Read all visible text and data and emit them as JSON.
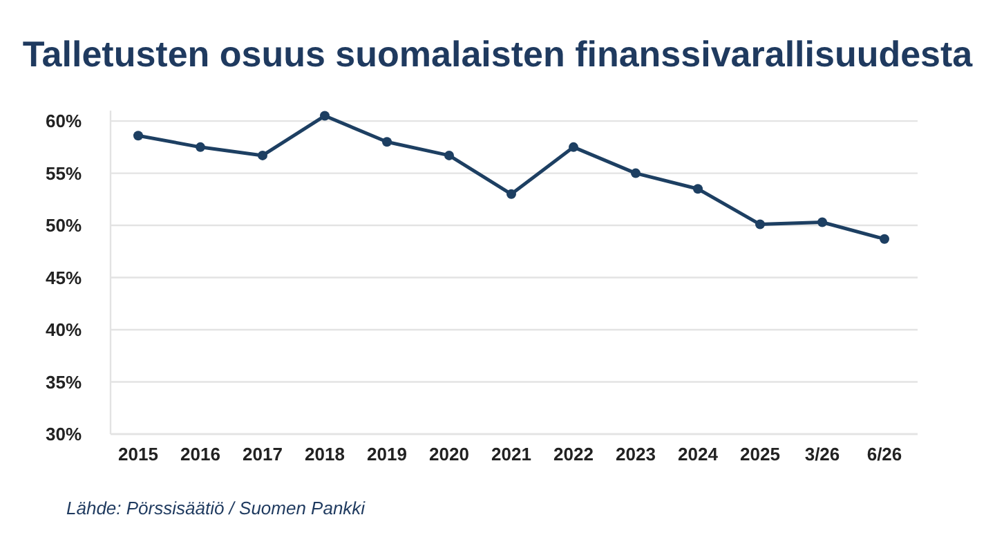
{
  "chart_data": {
    "type": "line",
    "title": "Talletusten osuus suomalaisten finanssivarallisuudesta",
    "categories": [
      "2015",
      "2016",
      "2017",
      "2018",
      "2019",
      "2020",
      "2021",
      "2022",
      "2023",
      "2024",
      "2025",
      "3/26",
      "6/26"
    ],
    "series": [
      {
        "color": "#1d3f62",
        "values": [
          58.6,
          57.5,
          56.7,
          60.5,
          58.0,
          56.7,
          53.0,
          57.5,
          55.0,
          53.5,
          50.1,
          50.3,
          48.7
        ]
      }
    ],
    "ylim": [
      30,
      61
    ],
    "yticks": [
      {
        "value": 30,
        "label": "30%"
      },
      {
        "value": 35,
        "label": "35%"
      },
      {
        "value": 40,
        "label": "40%"
      },
      {
        "value": 45,
        "label": "45%"
      },
      {
        "value": 50,
        "label": "50%"
      },
      {
        "value": 55,
        "label": "55%"
      },
      {
        "value": 60,
        "label": "60%"
      }
    ],
    "grid": "y",
    "marker": "circle",
    "line_style": "solid",
    "annotations": [
      "Lähde: Pörssisäätiö / Suomen Pankki"
    ]
  }
}
